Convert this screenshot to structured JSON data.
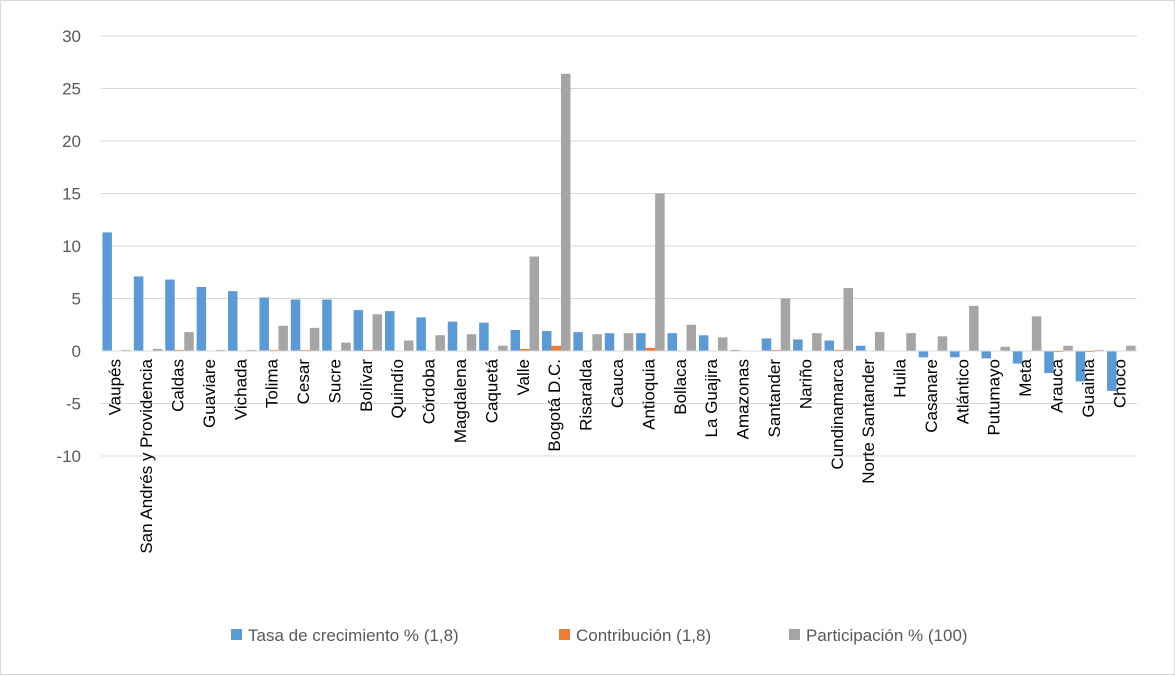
{
  "chart_data": {
    "type": "bar",
    "title": "",
    "xlabel": "",
    "ylabel": "",
    "ylim": [
      -10,
      30
    ],
    "yticks": [
      -10,
      -5,
      0,
      5,
      10,
      15,
      20,
      25,
      30
    ],
    "grid": true,
    "legend_position": "bottom",
    "categories": [
      "Vaupés",
      "San Andrés  y Providencia",
      "Caldas",
      "Guaviare",
      "Vichada",
      "Tolima",
      "Cesar",
      "Sucre",
      "Bolívar",
      "Quindío",
      "Córdoba",
      "Magdalena",
      "Caquetá",
      "Valle",
      "Bogotá D.C.",
      "Risaralda",
      "Cauca",
      "Antioquia",
      "Bollaca",
      "La Guajira",
      "Amazonas",
      "Santander",
      "Nariño",
      "Cundinamarca",
      "Norte Santander",
      "Huila",
      "Casanare",
      "Atlántico",
      "Putumayo",
      "Meta",
      "Arauca",
      "Guainia",
      "Choco"
    ],
    "series": [
      {
        "name": "Tasa de crecimiento % (1,8)",
        "color": "#5b9bd5",
        "values": [
          11.3,
          7.1,
          6.8,
          6.1,
          5.7,
          5.1,
          4.9,
          4.9,
          3.9,
          3.8,
          3.2,
          2.8,
          2.7,
          2.0,
          1.9,
          1.8,
          1.7,
          1.7,
          1.7,
          1.5,
          0.1,
          1.2,
          1.1,
          1.0,
          0.5,
          0.0,
          -0.6,
          -0.6,
          -0.7,
          -1.2,
          -2.1,
          -2.9,
          -3.8
        ]
      },
      {
        "name": "Contribución (1,8)",
        "color": "#ed7d31",
        "values": [
          0.0,
          0.0,
          0.1,
          0.0,
          0.0,
          0.1,
          0.1,
          0.0,
          0.1,
          0.0,
          0.0,
          0.0,
          0.0,
          0.2,
          0.5,
          0.0,
          0.0,
          0.3,
          0.0,
          0.0,
          0.0,
          0.1,
          0.0,
          0.1,
          0.0,
          0.0,
          0.0,
          0.0,
          0.0,
          0.0,
          -0.1,
          -0.1,
          0.0
        ]
      },
      {
        "name": "Participación % (100)",
        "color": "#a5a5a5",
        "values": [
          0.1,
          0.2,
          1.8,
          0.1,
          0.1,
          2.4,
          2.2,
          0.8,
          3.5,
          1.0,
          1.5,
          1.6,
          0.5,
          9.0,
          26.4,
          1.6,
          1.7,
          15.0,
          2.5,
          1.3,
          0.0,
          5.0,
          1.7,
          6.0,
          1.8,
          1.7,
          1.4,
          4.3,
          0.4,
          3.3,
          0.5,
          0.1,
          0.5
        ]
      }
    ]
  }
}
